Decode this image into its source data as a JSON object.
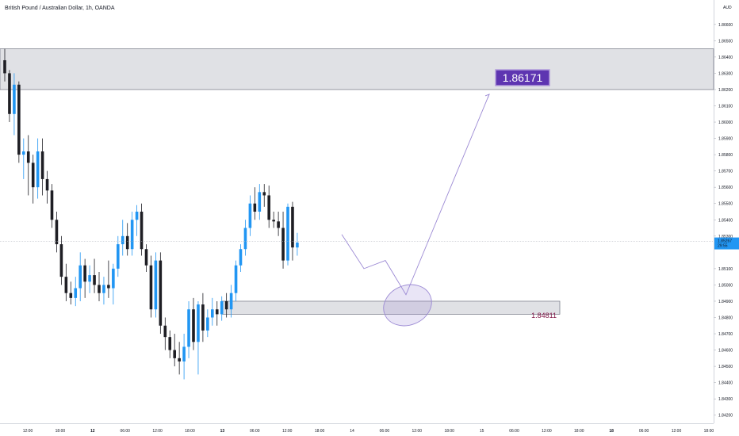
{
  "header": {
    "title": "British Pound / Australian Dollar, 1h, OANDA"
  },
  "chart_data": {
    "type": "candlestick",
    "symbol": "British Pound / Australian Dollar",
    "timeframe": "1h",
    "source": "OANDA",
    "currency_unit": "AUD",
    "ylim": [
      1.8415,
      1.8675
    ],
    "y_ticks": [
      "1.86600",
      "1.86500",
      "1.86400",
      "1.86300",
      "1.86200",
      "1.86100",
      "1.86000",
      "1.85900",
      "1.85800",
      "1.85700",
      "1.85600",
      "1.85500",
      "1.85400",
      "1.85300",
      "1.85100",
      "1.85000",
      "1.84900",
      "1.84800",
      "1.84700",
      "1.84600",
      "1.84500",
      "1.84400",
      "1.84300",
      "1.84200"
    ],
    "x_ticks": [
      {
        "label": "12:00",
        "bold": false
      },
      {
        "label": "18:00",
        "bold": false
      },
      {
        "label": "12",
        "bold": true
      },
      {
        "label": "06:00",
        "bold": false
      },
      {
        "label": "12:00",
        "bold": false
      },
      {
        "label": "18:00",
        "bold": false
      },
      {
        "label": "13",
        "bold": true
      },
      {
        "label": "06:00",
        "bold": false
      },
      {
        "label": "12:00",
        "bold": false
      },
      {
        "label": "18:00",
        "bold": false
      },
      {
        "label": "14",
        "bold": false
      },
      {
        "label": "06:00",
        "bold": false
      },
      {
        "label": "12:00",
        "bold": false
      },
      {
        "label": "18:00",
        "bold": false
      },
      {
        "label": "15",
        "bold": false
      },
      {
        "label": "06:00",
        "bold": false
      },
      {
        "label": "12:00",
        "bold": false
      },
      {
        "label": "18:00",
        "bold": false
      },
      {
        "label": "18",
        "bold": true
      },
      {
        "label": "06:00",
        "bold": false
      },
      {
        "label": "12:00",
        "bold": false
      },
      {
        "label": "18:00",
        "bold": false
      }
    ],
    "candles": [
      [
        1.8638,
        1.8645,
        1.8625,
        1.863
      ],
      [
        1.863,
        1.8632,
        1.86,
        1.8605
      ],
      [
        1.8605,
        1.863,
        1.8592,
        1.8623
      ],
      [
        1.8623,
        1.8625,
        1.8575,
        1.858
      ],
      [
        1.858,
        1.859,
        1.8565,
        1.8582
      ],
      [
        1.8582,
        1.8592,
        1.8555,
        1.8575
      ],
      [
        1.8575,
        1.858,
        1.855,
        1.856
      ],
      [
        1.856,
        1.859,
        1.8553,
        1.8582
      ],
      [
        1.8582,
        1.859,
        1.8555,
        1.8565
      ],
      [
        1.8565,
        1.857,
        1.855,
        1.8558
      ],
      [
        1.8558,
        1.8562,
        1.8535,
        1.854
      ],
      [
        1.854,
        1.8545,
        1.852,
        1.8525
      ],
      [
        1.8525,
        1.853,
        1.85,
        1.8505
      ],
      [
        1.8505,
        1.8513,
        1.849,
        1.8495
      ],
      [
        1.8495,
        1.8502,
        1.8488,
        1.8492
      ],
      [
        1.8492,
        1.8505,
        1.8487,
        1.8498
      ],
      [
        1.8498,
        1.852,
        1.849,
        1.8512
      ],
      [
        1.8512,
        1.8516,
        1.8492,
        1.8502
      ],
      [
        1.8502,
        1.8512,
        1.8495,
        1.8506
      ],
      [
        1.8506,
        1.8516,
        1.8495,
        1.85
      ],
      [
        1.85,
        1.8508,
        1.849,
        1.8495
      ],
      [
        1.8495,
        1.8505,
        1.8488,
        1.85
      ],
      [
        1.85,
        1.8515,
        1.8492,
        1.8498
      ],
      [
        1.8498,
        1.8513,
        1.8488,
        1.851
      ],
      [
        1.851,
        1.853,
        1.8505,
        1.8525
      ],
      [
        1.8525,
        1.854,
        1.8518,
        1.853
      ],
      [
        1.853,
        1.8538,
        1.8518,
        1.8522
      ],
      [
        1.8522,
        1.8545,
        1.8518,
        1.854
      ],
      [
        1.854,
        1.8549,
        1.853,
        1.8545
      ],
      [
        1.8545,
        1.855,
        1.8518,
        1.8522
      ],
      [
        1.8522,
        1.8525,
        1.8508,
        1.8512
      ],
      [
        1.8512,
        1.8518,
        1.848,
        1.8485
      ],
      [
        1.8485,
        1.852,
        1.848,
        1.8515
      ],
      [
        1.8515,
        1.852,
        1.847,
        1.8475
      ],
      [
        1.8475,
        1.848,
        1.846,
        1.8468
      ],
      [
        1.8468,
        1.8472,
        1.8455,
        1.846
      ],
      [
        1.846,
        1.847,
        1.845,
        1.8455
      ],
      [
        1.8455,
        1.8465,
        1.8445,
        1.8453
      ],
      [
        1.8453,
        1.847,
        1.8442,
        1.8462
      ],
      [
        1.8462,
        1.849,
        1.8455,
        1.8485
      ],
      [
        1.8485,
        1.8492,
        1.846,
        1.8465
      ],
      [
        1.8465,
        1.849,
        1.8445,
        1.8488
      ],
      [
        1.8488,
        1.8495,
        1.8465,
        1.8472
      ],
      [
        1.8472,
        1.8485,
        1.8468,
        1.848
      ],
      [
        1.848,
        1.8492,
        1.8475,
        1.8485
      ],
      [
        1.8485,
        1.849,
        1.8475,
        1.8482
      ],
      [
        1.8482,
        1.8493,
        1.8478,
        1.849
      ],
      [
        1.849,
        1.8495,
        1.848,
        1.8485
      ],
      [
        1.8485,
        1.85,
        1.848,
        1.8495
      ],
      [
        1.8495,
        1.8515,
        1.849,
        1.8512
      ],
      [
        1.8512,
        1.8525,
        1.8508,
        1.8522
      ],
      [
        1.8522,
        1.854,
        1.8518,
        1.8535
      ],
      [
        1.8535,
        1.8555,
        1.853,
        1.855
      ],
      [
        1.855,
        1.856,
        1.854,
        1.8545
      ],
      [
        1.8545,
        1.8562,
        1.854,
        1.8557
      ],
      [
        1.8557,
        1.8562,
        1.8548,
        1.8555
      ],
      [
        1.8555,
        1.8561,
        1.8535,
        1.854
      ],
      [
        1.854,
        1.8545,
        1.8535,
        1.8539
      ],
      [
        1.8539,
        1.8545,
        1.853,
        1.8535
      ],
      [
        1.8535,
        1.8545,
        1.851,
        1.8515
      ],
      [
        1.8515,
        1.855,
        1.8512,
        1.8548
      ],
      [
        1.8548,
        1.8551,
        1.8515,
        1.8523
      ],
      [
        1.8523,
        1.8532,
        1.8518,
        1.8526
      ]
    ],
    "annotations": [
      {
        "label": "1.86171",
        "value": 1.86171,
        "type": "target-label"
      },
      {
        "label": "1.84811",
        "value": 1.84811,
        "type": "zone-label"
      },
      {
        "label": "1.85267",
        "value": 1.85267,
        "type": "current-price"
      },
      {
        "label": "29:55",
        "type": "countdown"
      }
    ],
    "zones": [
      {
        "name": "resistance-zone",
        "from": 1.862,
        "to": 1.8645
      },
      {
        "name": "support-zone",
        "from": 1.8482,
        "to": 1.849
      }
    ],
    "projection_path": [
      [
        1.8531,
        0
      ],
      [
        1.851,
        1
      ],
      [
        1.8515,
        2
      ],
      [
        1.8494,
        3
      ],
      [
        1.86171,
        4
      ]
    ]
  },
  "colors": {
    "up": "#2196f3",
    "down": "#1e1e24",
    "zone": "#e0e1e5",
    "zone_border": "#707380",
    "projection": "#9c8ad4",
    "target_bg": "#5e35b1",
    "support_text": "#7f1444",
    "price_label": "#2196f3"
  }
}
